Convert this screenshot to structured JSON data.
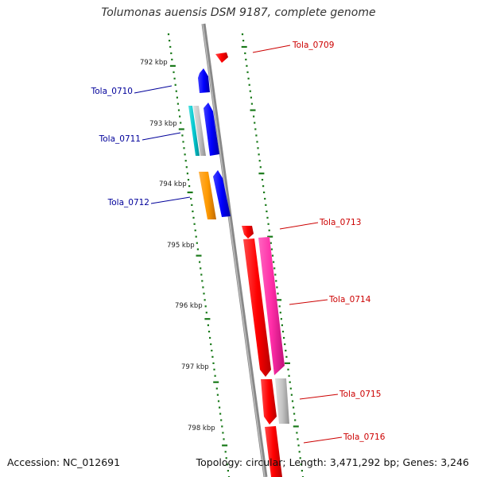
{
  "title": "Tolumonas auensis DSM 9187, complete genome",
  "accession": "Accession: NC_012691",
  "topology": "Topology: circular; Length: 3,471,292 bp; Genes: 3,246",
  "colors": {
    "backbone": "#8c8c8c",
    "ruler_ticks": "#1a7a1a",
    "forward_label": "#cc0000",
    "reverse_label": "#00009a"
  },
  "ruler_labels": [
    "792 kbp",
    "793 kbp",
    "794 kbp",
    "795 kbp",
    "796 kbp",
    "797 kbp",
    "798 kbp"
  ],
  "genes": [
    {
      "id": "Tola_0709",
      "strand": "forward"
    },
    {
      "id": "Tola_0710",
      "strand": "reverse"
    },
    {
      "id": "Tola_0711",
      "strand": "reverse"
    },
    {
      "id": "Tola_0712",
      "strand": "reverse"
    },
    {
      "id": "Tola_0713",
      "strand": "forward"
    },
    {
      "id": "Tola_0714",
      "strand": "forward"
    },
    {
      "id": "Tola_0715",
      "strand": "forward"
    },
    {
      "id": "Tola_0716",
      "strand": "forward"
    }
  ]
}
